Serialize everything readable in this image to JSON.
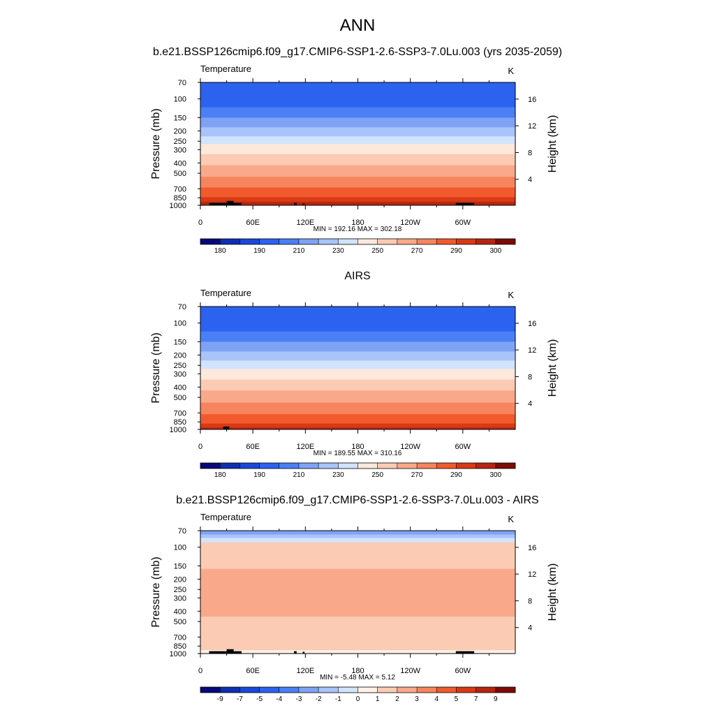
{
  "figure": {
    "title": "ANN"
  },
  "colorbar_levels_abs": [
    "180",
    "190",
    "210",
    "230",
    "250",
    "270",
    "290",
    "300"
  ],
  "colorbar_levels_diff": [
    "-9",
    "-7",
    "-5",
    "-4",
    "-3",
    "-2",
    "-1",
    "0",
    "1",
    "2",
    "3",
    "4",
    "5",
    "7",
    "9"
  ],
  "palette_abs": [
    "#08087a",
    "#0d2fb0",
    "#1a48d8",
    "#2c62f0",
    "#4a7ff5",
    "#7fa2f5",
    "#a9c3fb",
    "#d2e3fd",
    "#fde8dc",
    "#fccbb4",
    "#f9a98a",
    "#f6845e",
    "#f15a2c",
    "#d83a16",
    "#b62510",
    "#7e0a06"
  ],
  "palette_diff": [
    "#08087a",
    "#0d2fb0",
    "#1a48d8",
    "#2c62f0",
    "#4a7ff5",
    "#7fa2f5",
    "#a9c3fb",
    "#d2e3fd",
    "#fdf1e8",
    "#fccbb4",
    "#f9a98a",
    "#f6845e",
    "#f15a2c",
    "#d83a16",
    "#b62510",
    "#7e0a06"
  ],
  "chart_data": [
    {
      "type": "heatmap",
      "title": "b.e21.BSSP126cmip6.f09_g17.CMIP6-SSP1-2.6-SSP3-7.0Lu.003 (yrs 2035-2059)",
      "variable": "Temperature",
      "units": "K",
      "xlabel": "",
      "ylabel": "Pressure (mb)",
      "y2label": "Height (km)",
      "x_ticks": [
        "0",
        "60E",
        "120E",
        "180",
        "120W",
        "60W"
      ],
      "y_ticks": [
        70,
        100,
        150,
        200,
        250,
        300,
        400,
        500,
        700,
        850,
        1000
      ],
      "y2_ticks": [
        4,
        8,
        12,
        16
      ],
      "ylim": [
        70,
        1000
      ],
      "stats": "MIN = 192.16  MAX = 302.18",
      "min": 192.16,
      "max": 302.18,
      "bands": [
        {
          "p_top": 70,
          "p_bot": 95,
          "color": "#2c62f0"
        },
        {
          "p_top": 95,
          "p_bot": 120,
          "color": "#2c62f0"
        },
        {
          "p_top": 120,
          "p_bot": 150,
          "color": "#4a7ff5"
        },
        {
          "p_top": 150,
          "p_bot": 185,
          "color": "#7fa2f5"
        },
        {
          "p_top": 185,
          "p_bot": 225,
          "color": "#a9c3fb"
        },
        {
          "p_top": 225,
          "p_bot": 265,
          "color": "#d2e3fd"
        },
        {
          "p_top": 265,
          "p_bot": 330,
          "color": "#fde8dc"
        },
        {
          "p_top": 330,
          "p_bot": 420,
          "color": "#fccbb4"
        },
        {
          "p_top": 420,
          "p_bot": 540,
          "color": "#f9a98a"
        },
        {
          "p_top": 540,
          "p_bot": 680,
          "color": "#f6845e"
        },
        {
          "p_top": 680,
          "p_bot": 840,
          "color": "#f15a2c"
        },
        {
          "p_top": 840,
          "p_bot": 930,
          "color": "#d83a16"
        },
        {
          "p_top": 930,
          "p_bot": 1000,
          "color": "#b62510"
        }
      ],
      "topography": [
        [
          10,
          30,
          950
        ],
        [
          30,
          38,
          910
        ],
        [
          38,
          47,
          950
        ],
        [
          107,
          110,
          950
        ],
        [
          117,
          119,
          960
        ],
        [
          292,
          313,
          950
        ]
      ]
    },
    {
      "type": "heatmap",
      "title": "AIRS",
      "variable": "Temperature",
      "units": "K",
      "xlabel": "",
      "ylabel": "Pressure (mb)",
      "y2label": "Height (km)",
      "x_ticks": [
        "0",
        "60E",
        "120E",
        "180",
        "120W",
        "60W"
      ],
      "y_ticks": [
        70,
        100,
        150,
        200,
        250,
        300,
        400,
        500,
        700,
        850,
        1000
      ],
      "y2_ticks": [
        4,
        8,
        12,
        16
      ],
      "ylim": [
        70,
        1000
      ],
      "stats": "MIN = 189.55  MAX = 310.16",
      "min": 189.55,
      "max": 310.16,
      "bands": [
        {
          "p_top": 70,
          "p_bot": 120,
          "color": "#2c62f0"
        },
        {
          "p_top": 120,
          "p_bot": 150,
          "color": "#4a7ff5"
        },
        {
          "p_top": 150,
          "p_bot": 185,
          "color": "#7fa2f5"
        },
        {
          "p_top": 185,
          "p_bot": 225,
          "color": "#a9c3fb"
        },
        {
          "p_top": 225,
          "p_bot": 270,
          "color": "#d2e3fd"
        },
        {
          "p_top": 270,
          "p_bot": 340,
          "color": "#fde8dc"
        },
        {
          "p_top": 340,
          "p_bot": 430,
          "color": "#fccbb4"
        },
        {
          "p_top": 430,
          "p_bot": 560,
          "color": "#f9a98a"
        },
        {
          "p_top": 560,
          "p_bot": 720,
          "color": "#f6845e"
        },
        {
          "p_top": 720,
          "p_bot": 880,
          "color": "#f15a2c"
        },
        {
          "p_top": 880,
          "p_bot": 960,
          "color": "#d83a16"
        },
        {
          "p_top": 960,
          "p_bot": 1000,
          "color": "#b62510"
        }
      ],
      "topography": [
        [
          26,
          33,
          940
        ]
      ]
    },
    {
      "type": "heatmap",
      "title": "b.e21.BSSP126cmip6.f09_g17.CMIP6-SSP1-2.6-SSP3-7.0Lu.003 - AIRS",
      "variable": "Temperature",
      "units": "K",
      "xlabel": "",
      "ylabel": "Pressure (mb)",
      "y2label": "Height (km)",
      "x_ticks": [
        "0",
        "60E",
        "120E",
        "180",
        "120W",
        "60W"
      ],
      "y_ticks": [
        70,
        100,
        150,
        200,
        250,
        300,
        400,
        500,
        700,
        850,
        1000
      ],
      "y2_ticks": [
        4,
        8,
        12,
        16
      ],
      "ylim": [
        70,
        1000
      ],
      "stats": "MIN =  -5.48  MAX =   5.12",
      "min": -5.48,
      "max": 5.12,
      "bands": [
        {
          "p_top": 70,
          "p_bot": 76,
          "color": "#7fa2f5"
        },
        {
          "p_top": 76,
          "p_bot": 82,
          "color": "#a9c3fb"
        },
        {
          "p_top": 82,
          "p_bot": 90,
          "color": "#d2e3fd"
        },
        {
          "p_top": 90,
          "p_bot": 160,
          "color": "#fccbb4"
        },
        {
          "p_top": 160,
          "p_bot": 450,
          "color": "#f9a98a"
        },
        {
          "p_top": 450,
          "p_bot": 930,
          "color": "#fccbb4"
        },
        {
          "p_top": 930,
          "p_bot": 1000,
          "color": "#fdf1e8"
        }
      ],
      "topography": [
        [
          10,
          30,
          950
        ],
        [
          30,
          38,
          910
        ],
        [
          38,
          47,
          950
        ],
        [
          107,
          110,
          950
        ],
        [
          117,
          119,
          960
        ],
        [
          292,
          313,
          950
        ]
      ]
    }
  ]
}
